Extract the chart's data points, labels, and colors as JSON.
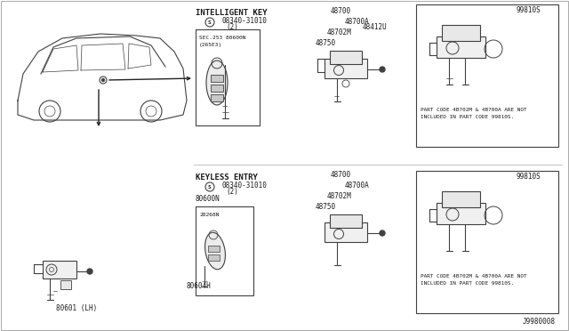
{
  "bg_color": "#ffffff",
  "diagram_id": "J9980008",
  "section_labels": {
    "intelligent_key": "INTELLIGENT KEY",
    "keyless_entry": "KEYLESS ENTRY"
  },
  "part_numbers_top": {
    "bolt": "08340-31010",
    "bolt_qty": "(2)",
    "sec_ref_line1": "SEC.253 80600N",
    "sec_ref_line2": "(265E3)",
    "p48700": "48700",
    "p48700A": "48700A",
    "p48702M": "48702M",
    "p48412U": "48412U",
    "p48750": "48750",
    "p99810S": "99810S",
    "note_top_line1": "PART CODE 4B702M & 4B700A ARE NOT",
    "note_top_line2": "INCLUDED IN PART CODE 99810S."
  },
  "part_numbers_bot": {
    "bolt": "08340-31010",
    "bolt_qty": "(2)",
    "p80600N": "80600N",
    "p28268N": "28268N",
    "p80604H": "80604H",
    "p48700": "48700",
    "p48700A": "48700A",
    "p48702M": "48702M",
    "p48750": "48750",
    "p99810S": "99810S",
    "note_bot_line1": "PART CODE 4B702M & 4B700A ARE NOT",
    "note_bot_line2": "INCLUDED IN PART CODE 99810S."
  },
  "car_label": "80601 (LH)",
  "colors": {
    "line": "#404040",
    "box_border": "#555555",
    "box_fill": "#f8f8f8",
    "text": "#1a1a1a",
    "light_gray": "#cccccc",
    "mid_gray": "#888888",
    "dark_gray": "#444444",
    "arrow": "#222222",
    "part_fill": "#f0f0f0",
    "part_fill2": "#e8e8e8"
  }
}
